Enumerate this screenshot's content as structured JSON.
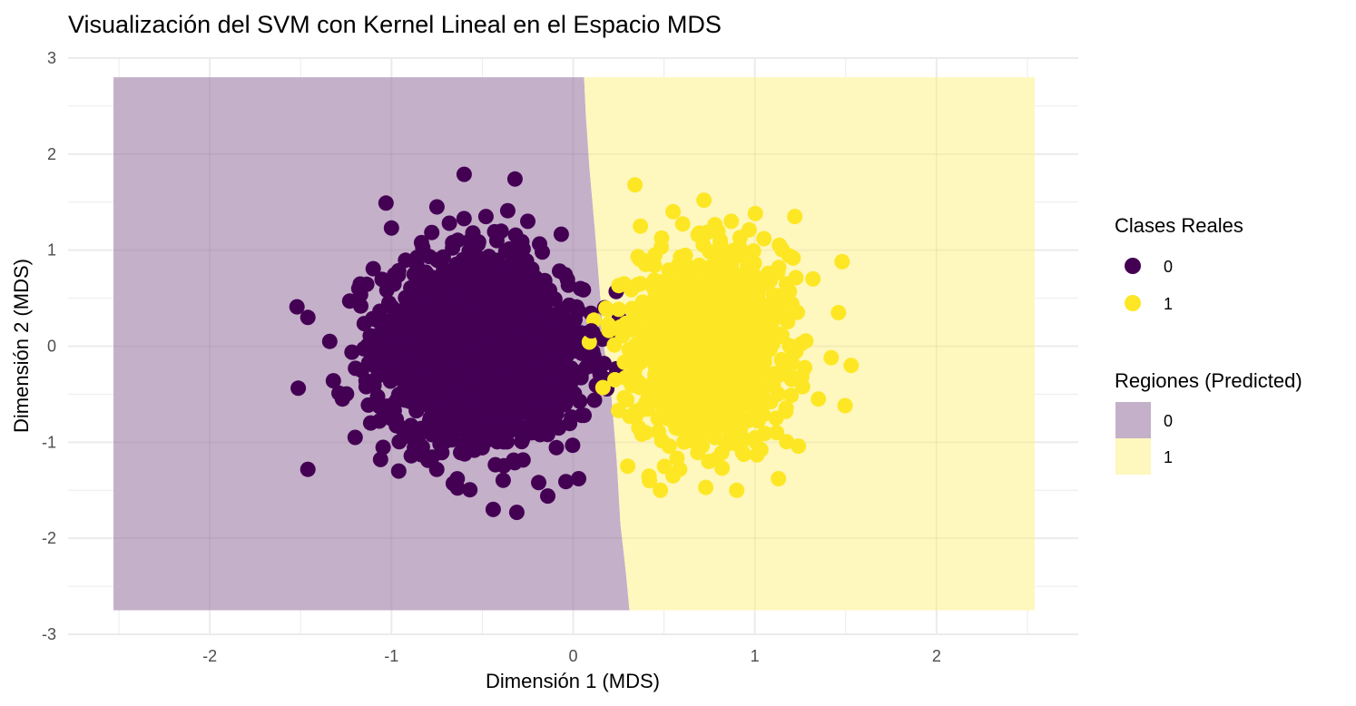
{
  "chart_data": {
    "type": "scatter",
    "title": "Visualización del SVM con Kernel Lineal en el Espacio MDS",
    "xlabel": "Dimensión 1 (MDS)",
    "ylabel": "Dimensión 2 (MDS)",
    "xlim": [
      -2.78,
      2.78
    ],
    "ylim": [
      -3.0,
      3.0
    ],
    "x_ticks": [
      -2,
      -1,
      0,
      1,
      2
    ],
    "y_ticks": [
      -3,
      -2,
      -1,
      0,
      1,
      2,
      3
    ],
    "x_tick_labels": [
      "-2",
      "-1",
      "0",
      "1",
      "2"
    ],
    "y_tick_labels": [
      "-3",
      "-2",
      "-1",
      "0",
      "1",
      "2",
      "3"
    ],
    "grid": true,
    "legend_position": "right",
    "colors": {
      "class_0": "#440154",
      "class_1": "#FDE725",
      "region_0": "#C4B0C9",
      "region_1": "#FEF7BE",
      "grid": "#EBEBEB",
      "axis_text": "#4D4D4D"
    },
    "regions": {
      "x_range": [
        -2.53,
        2.54
      ],
      "y_range": [
        -2.75,
        2.8
      ],
      "boundary": [
        {
          "y": 2.8,
          "x": 0.06
        },
        {
          "y": 2.4,
          "x": 0.07
        },
        {
          "y": 1.85,
          "x": 0.09
        },
        {
          "y": 1.2,
          "x": 0.12
        },
        {
          "y": 0.5,
          "x": 0.15
        },
        {
          "y": 0.0,
          "x": 0.17
        },
        {
          "y": -0.5,
          "x": 0.21
        },
        {
          "y": -1.2,
          "x": 0.24
        },
        {
          "y": -1.85,
          "x": 0.26
        },
        {
          "y": -2.35,
          "x": 0.29
        },
        {
          "y": -2.75,
          "x": 0.31
        }
      ]
    },
    "clusters": [
      {
        "class": "0",
        "center": [
          -0.52,
          -0.05
        ],
        "sd": [
          0.24,
          0.44
        ],
        "n": 2500
      },
      {
        "class": "1",
        "center": [
          0.75,
          0.0
        ],
        "sd": [
          0.2,
          0.46
        ],
        "n": 1200
      }
    ],
    "series": [
      {
        "name": "0",
        "points": [
          [
            -0.32,
            1.74
          ],
          [
            -0.6,
            1.79
          ],
          [
            -1.03,
            1.49
          ],
          [
            -1.0,
            1.23
          ],
          [
            -1.52,
            0.41
          ],
          [
            -1.46,
            0.3
          ],
          [
            -1.34,
            0.05
          ],
          [
            -1.32,
            -0.36
          ],
          [
            -1.2,
            -0.95
          ],
          [
            -0.44,
            -1.7
          ],
          [
            -0.31,
            -1.73
          ],
          [
            -0.14,
            -1.56
          ],
          [
            -0.96,
            -1.3
          ],
          [
            -0.66,
            -1.43
          ],
          [
            -0.04,
            -1.41
          ],
          [
            0.03,
            -1.38
          ],
          [
            0.01,
            0.28
          ],
          [
            0.04,
            0.6
          ],
          [
            0.1,
            0.16
          ],
          [
            0.17,
            -0.18
          ],
          [
            -0.25,
            1.3
          ],
          [
            -0.48,
            1.35
          ],
          [
            -0.75,
            1.45
          ],
          [
            -0.87,
            0.88
          ],
          [
            -1.18,
            0.6
          ],
          [
            -1.23,
            0.47
          ],
          [
            -1.14,
            -0.36
          ],
          [
            -1.27,
            -0.55
          ],
          [
            -1.06,
            -1.18
          ],
          [
            -0.19,
            -1.42
          ],
          [
            -0.42,
            1.1
          ],
          [
            0.06,
            -0.72
          ],
          [
            -0.83,
            -1.05
          ],
          [
            -0.17,
            0.98
          ]
        ]
      },
      {
        "name": "1",
        "points": [
          [
            0.34,
            1.68
          ],
          [
            0.72,
            1.52
          ],
          [
            1.22,
            1.35
          ],
          [
            1.48,
            0.88
          ],
          [
            1.53,
            -0.2
          ],
          [
            1.42,
            -0.12
          ],
          [
            1.24,
            -1.04
          ],
          [
            1.13,
            -1.38
          ],
          [
            0.9,
            -1.5
          ],
          [
            0.73,
            -1.47
          ],
          [
            0.48,
            -1.5
          ],
          [
            0.42,
            -1.4
          ],
          [
            0.3,
            -1.25
          ],
          [
            0.25,
            -0.67
          ],
          [
            0.23,
            -0.35
          ],
          [
            0.26,
            0.2
          ],
          [
            0.28,
            0.65
          ],
          [
            0.37,
            1.25
          ],
          [
            0.55,
            1.4
          ],
          [
            0.87,
            1.3
          ],
          [
            1.32,
            0.7
          ],
          [
            1.46,
            0.35
          ],
          [
            1.35,
            -0.55
          ],
          [
            0.82,
            -1.27
          ],
          [
            0.55,
            -1.35
          ],
          [
            1.05,
            1.12
          ],
          [
            0.45,
            0.95
          ],
          [
            1.12,
            -0.9
          ]
        ]
      }
    ]
  },
  "legends": {
    "classes": {
      "title": "Clases Reales",
      "items": [
        {
          "label": "0",
          "color": "#440154"
        },
        {
          "label": "1",
          "color": "#FDE725"
        }
      ]
    },
    "regions": {
      "title": "Regiones (Predicted)",
      "items": [
        {
          "label": "0",
          "color": "#C4B0C9"
        },
        {
          "label": "1",
          "color": "#FEF7BE"
        }
      ]
    }
  }
}
